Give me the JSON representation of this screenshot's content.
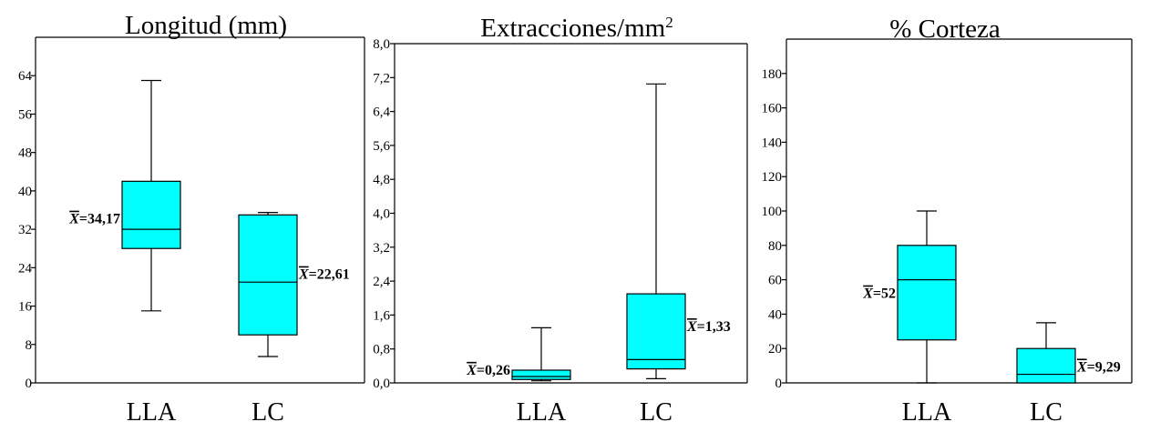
{
  "fill_color": "#00ffff",
  "chart_data": [
    {
      "type": "box",
      "title": "Longitud (mm)",
      "title_sup": "",
      "ylim": [
        0,
        72
      ],
      "yticks": [
        0,
        8,
        16,
        24,
        32,
        40,
        48,
        56,
        64
      ],
      "ytick_labels": [
        "0",
        "8",
        "16",
        "24",
        "32",
        "40",
        "48",
        "56",
        "64"
      ],
      "categories": [
        "LLA",
        "LC"
      ],
      "boxes": [
        {
          "category": "LLA",
          "min": 15,
          "q1": 28,
          "median": 32,
          "q3": 42,
          "max": 63,
          "mean_label": "=34,17",
          "label_side": "left"
        },
        {
          "category": "LC",
          "min": 5.5,
          "q1": 10,
          "median": 21,
          "q3": 35,
          "max": 35.5,
          "mean_label": "=22,61",
          "label_side": "right"
        }
      ]
    },
    {
      "type": "box",
      "title": "Extracciones/mm",
      "title_sup": "2",
      "ylim": [
        0,
        8.0
      ],
      "yticks": [
        0,
        0.8,
        1.6,
        2.4,
        3.2,
        4.0,
        4.8,
        5.6,
        6.4,
        7.2,
        8.0
      ],
      "ytick_labels": [
        "0,0",
        "0,8",
        "1,6",
        "2,4",
        "3,2",
        "4,0",
        "4,8",
        "5,6",
        "6,4",
        "7,2",
        "8,0"
      ],
      "categories": [
        "LLA",
        "LC"
      ],
      "boxes": [
        {
          "category": "LLA",
          "min": 0.05,
          "q1": 0.08,
          "median": 0.15,
          "q3": 0.3,
          "max": 1.3,
          "mean_label": "=0,26",
          "label_side": "left"
        },
        {
          "category": "LC",
          "min": 0.1,
          "q1": 0.33,
          "median": 0.55,
          "q3": 2.1,
          "max": 7.05,
          "mean_label": "=1,33",
          "label_side": "right"
        }
      ]
    },
    {
      "type": "box",
      "title": "% Corteza",
      "title_sup": "",
      "ylim": [
        0,
        200
      ],
      "yticks": [
        0,
        20,
        40,
        60,
        80,
        100,
        120,
        140,
        160,
        180
      ],
      "ytick_labels": [
        "0",
        "20",
        "40",
        "60",
        "80",
        "100",
        "120",
        "140",
        "160",
        "180"
      ],
      "categories": [
        "LLA",
        "LC"
      ],
      "boxes": [
        {
          "category": "LLA",
          "min": 0,
          "q1": 25,
          "median": 60,
          "q3": 80,
          "max": 100,
          "mean_label": "=52",
          "label_side": "left"
        },
        {
          "category": "LC",
          "min": 0,
          "q1": 0,
          "median": 5,
          "q3": 20,
          "max": 35,
          "mean_label": "=9,29",
          "label_side": "right"
        }
      ]
    }
  ]
}
